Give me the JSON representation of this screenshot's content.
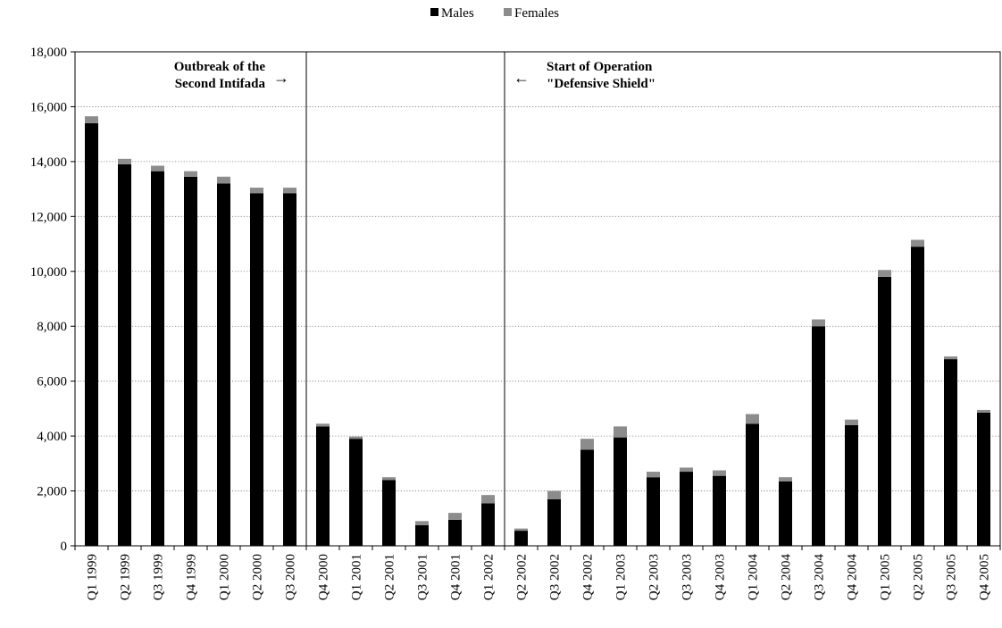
{
  "chart_data": {
    "type": "bar",
    "stacked": true,
    "title": "",
    "xlabel": "",
    "ylabel": "",
    "ylim": [
      0,
      18000
    ],
    "yticks": [
      0,
      2000,
      4000,
      6000,
      8000,
      10000,
      12000,
      14000,
      16000,
      18000
    ],
    "ytick_labels": [
      "0",
      "2,000",
      "4,000",
      "6,000",
      "8,000",
      "10,000",
      "12,000",
      "14,000",
      "16,000",
      "18,000"
    ],
    "grid": "horizontal dotted",
    "legend_position": "top-center",
    "categories": [
      "Q1 1999",
      "Q2 1999",
      "Q3 1999",
      "Q4 1999",
      "Q1 2000",
      "Q2 2000",
      "Q3 2000",
      "Q4 2000",
      "Q1 2001",
      "Q2 2001",
      "Q3 2001",
      "Q4 2001",
      "Q1 2002",
      "Q2 2002",
      "Q3 2002",
      "Q4 2002",
      "Q1 2003",
      "Q2 2003",
      "Q3 2003",
      "Q4 2003",
      "Q1 2004",
      "Q2 2004",
      "Q3 2004",
      "Q4 2004",
      "Q1 2005",
      "Q2 2005",
      "Q3 2005",
      "Q4 2005"
    ],
    "series": [
      {
        "name": "Males",
        "color": "#000000",
        "values": [
          15400,
          13900,
          13650,
          13450,
          13200,
          12850,
          12850,
          4350,
          3900,
          2400,
          750,
          950,
          1550,
          550,
          1700,
          3500,
          3950,
          2500,
          2700,
          2550,
          4450,
          2350,
          8000,
          4400,
          9800,
          10900,
          6800,
          4850
        ]
      },
      {
        "name": "Females",
        "color": "#8c8c8c",
        "values": [
          250,
          200,
          200,
          200,
          250,
          200,
          200,
          100,
          80,
          100,
          150,
          250,
          300,
          80,
          300,
          400,
          400,
          200,
          150,
          200,
          350,
          150,
          250,
          200,
          250,
          250,
          100,
          100
        ]
      }
    ],
    "dividers_after": [
      "Q3 2000",
      "Q1 2002"
    ],
    "annotations": [
      {
        "lines": [
          "Outbreak of the",
          "Second Intifada"
        ],
        "arrow": "→"
      },
      {
        "lines": [
          "Start of Operation",
          "\"Defensive Shield\""
        ],
        "arrow": "←"
      }
    ]
  }
}
